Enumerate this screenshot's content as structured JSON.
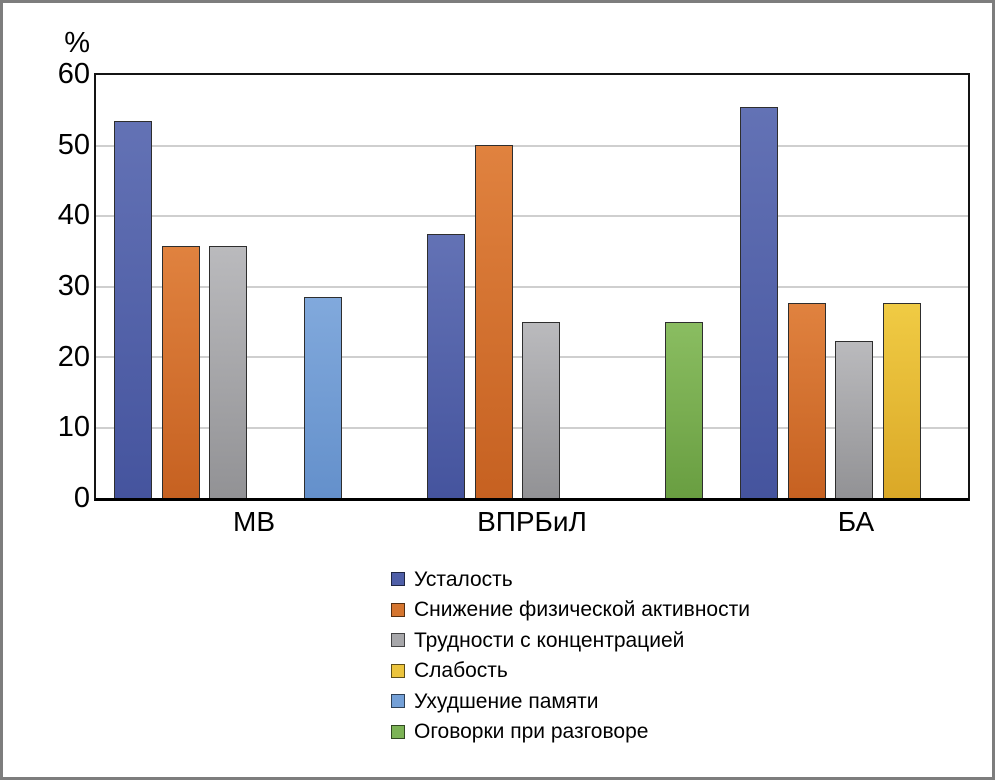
{
  "chart_data": {
    "type": "bar",
    "title": "",
    "xlabel": "",
    "ylabel": "%",
    "categories": [
      "МВ",
      "ВПРБиЛ",
      "БА"
    ],
    "series": [
      {
        "name": "Усталость",
        "color": "#4f5fa8",
        "color_top": "#6372b5",
        "color_bottom": "#45549e",
        "values": [
          53.5,
          37.5,
          55.5
        ]
      },
      {
        "name": "Снижение физической активности",
        "color": "#d5752f",
        "color_top": "#e0823f",
        "color_bottom": "#c66121",
        "values": [
          35.7,
          50,
          27.7
        ]
      },
      {
        "name": "Трудности с концентрацией",
        "color": "#a7a7aa",
        "color_top": "#bababd",
        "color_bottom": "#929295",
        "values": [
          35.7,
          25,
          22.2
        ]
      },
      {
        "name": "Слабость",
        "color": "#ecc43d",
        "color_top": "#f0cb44",
        "color_bottom": "#daa827",
        "values": [
          0,
          0,
          27.7
        ]
      },
      {
        "name": "Ухудшение памяти",
        "color": "#74a0d7",
        "color_top": "#81a9dc",
        "color_bottom": "#6490cb",
        "values": [
          28.5,
          0,
          0
        ]
      },
      {
        "name": "Оговорки при разговоре",
        "color": "#7cb356",
        "color_top": "#8abd61",
        "color_bottom": "#699e41",
        "values": [
          0,
          25,
          0
        ]
      }
    ],
    "ylim": [
      0,
      60
    ],
    "yticks": [
      0,
      10,
      20,
      30,
      40,
      50,
      60
    ],
    "grid": true,
    "legend_position": "bottom"
  }
}
